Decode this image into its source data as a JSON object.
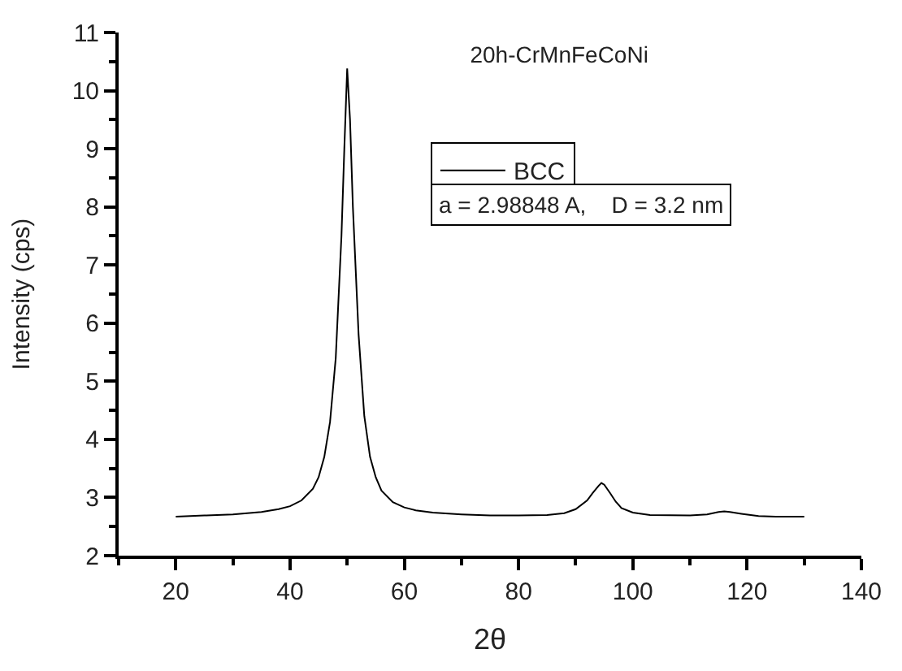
{
  "chart_data": {
    "type": "line",
    "title": "20h-CrMnFeCoNi",
    "xlabel": "2θ",
    "ylabel": "Intensity (cps)",
    "annotations": [
      "a = 2.98848 A,    D = 3.2 nm"
    ],
    "series": [
      {
        "name": "BCC",
        "color": "#000000",
        "x": [
          20,
          25,
          30,
          35,
          38,
          40,
          42,
          44,
          45,
          46,
          47,
          48,
          49,
          49.5,
          50,
          50.5,
          51,
          52,
          53,
          54,
          55,
          56,
          58,
          60,
          62,
          65,
          70,
          75,
          80,
          85,
          88,
          90,
          92,
          93,
          94,
          94.5,
          95,
          96,
          97,
          98,
          100,
          103,
          110,
          113,
          115,
          116,
          117,
          119,
          122,
          125,
          130
        ],
        "values": [
          2.67,
          2.69,
          2.71,
          2.75,
          2.8,
          2.85,
          2.95,
          3.15,
          3.35,
          3.7,
          4.3,
          5.4,
          7.5,
          9.0,
          10.38,
          9.5,
          8.0,
          5.8,
          4.4,
          3.7,
          3.35,
          3.12,
          2.92,
          2.83,
          2.78,
          2.74,
          2.71,
          2.69,
          2.69,
          2.7,
          2.73,
          2.8,
          2.95,
          3.08,
          3.2,
          3.25,
          3.22,
          3.08,
          2.93,
          2.82,
          2.74,
          2.7,
          2.69,
          2.71,
          2.75,
          2.76,
          2.75,
          2.72,
          2.68,
          2.67,
          2.67
        ]
      }
    ],
    "xlim": [
      10,
      140
    ],
    "xticks": [
      20,
      40,
      60,
      80,
      100,
      120,
      140
    ],
    "ylim": [
      2,
      11
    ],
    "yticks": [
      2,
      3,
      4,
      5,
      6,
      7,
      8,
      9,
      10,
      11
    ],
    "legend": "top right",
    "marker": "none",
    "line_style": "solid"
  }
}
